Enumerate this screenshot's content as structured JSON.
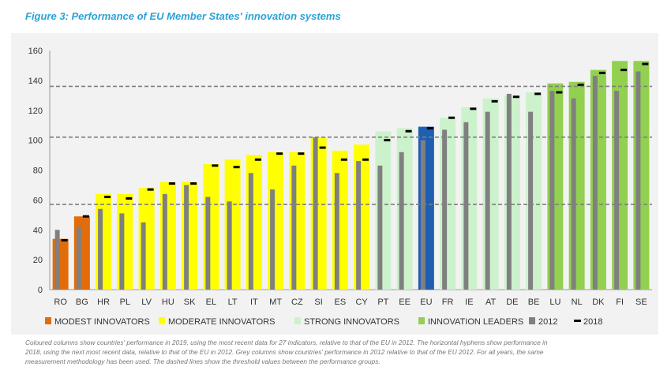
{
  "figure": {
    "title": "Figure 3: Performance of EU Member States' innovation systems"
  },
  "chart_data": {
    "type": "bar",
    "ylim": [
      0,
      160
    ],
    "yticks": [
      0,
      20,
      40,
      60,
      80,
      100,
      120,
      140,
      160
    ],
    "grid": false,
    "thresholds": [
      57,
      102,
      136
    ],
    "categories": [
      "RO",
      "BG",
      "HR",
      "PL",
      "LV",
      "HU",
      "SK",
      "EL",
      "LT",
      "IT",
      "MT",
      "CZ",
      "SI",
      "ES",
      "CY",
      "PT",
      "EE",
      "EU",
      "FR",
      "IE",
      "AT",
      "DE",
      "BE",
      "LU",
      "NL",
      "DK",
      "FI",
      "SE"
    ],
    "groups": [
      "modest",
      "modest",
      "moderate",
      "moderate",
      "moderate",
      "moderate",
      "moderate",
      "moderate",
      "moderate",
      "moderate",
      "moderate",
      "moderate",
      "moderate",
      "moderate",
      "moderate",
      "strong",
      "strong",
      "eu",
      "strong",
      "strong",
      "strong",
      "strong",
      "strong",
      "leader",
      "leader",
      "leader",
      "leader",
      "leader"
    ],
    "series": [
      {
        "name": "2019",
        "values": [
          34,
          49,
          64,
          64,
          68,
          72,
          72,
          84,
          87,
          90,
          92,
          92,
          102,
          93,
          97,
          106,
          108,
          109,
          115,
          122,
          128,
          130,
          132,
          138,
          139,
          147,
          153,
          153
        ]
      },
      {
        "name": "2012",
        "values": [
          40,
          42,
          54,
          51,
          45,
          64,
          70,
          62,
          59,
          78,
          67,
          83,
          102,
          78,
          86,
          83,
          92,
          100,
          107,
          112,
          119,
          131,
          119,
          133,
          128,
          143,
          133,
          146
        ]
      },
      {
        "name": "2018",
        "values": [
          33,
          49,
          62,
          61,
          67,
          71,
          71,
          83,
          82,
          87,
          91,
          91,
          95,
          87,
          87,
          100,
          106,
          108,
          115,
          121,
          126,
          129,
          131,
          132,
          137,
          145,
          147,
          151
        ]
      }
    ],
    "colors": {
      "modest": "#e36c0a",
      "moderate": "#ffff00",
      "strong": "#ccf2cc",
      "eu": "#1f5fb0",
      "leader": "#92d050",
      "grey": "#808080",
      "marker": "#000000",
      "threshold": "#7f7f7f"
    },
    "legend": {
      "position": "bottom",
      "items": [
        {
          "label": "MODEST INNOVATORS",
          "color": "#e36c0a",
          "kind": "box"
        },
        {
          "label": "MODERATE INNOVATORS",
          "color": "#ffff00",
          "kind": "box"
        },
        {
          "label": "STRONG INNOVATORS",
          "color": "#ccf2cc",
          "kind": "box"
        },
        {
          "label": "INNOVATION LEADERS",
          "color": "#92d050",
          "kind": "box"
        },
        {
          "label": "2012",
          "color": "#808080",
          "kind": "box"
        },
        {
          "label": "2018",
          "color": "#000000",
          "kind": "dash"
        }
      ]
    }
  },
  "note": {
    "line1": "Coloured columns show countries' performance in 2019, using the most recent data for 27 indicators, relative to that of the EU in 2012. The horizontal hyphens show performance in",
    "line2": "2018, using the next most recent data, relative to that of the EU in 2012. Grey columns show countries' performance in 2012 relative to that of the EU 2012. For all years, the same",
    "line3": "measurement methodology has been used. The dashed lines show the threshold values between the performance groups."
  }
}
